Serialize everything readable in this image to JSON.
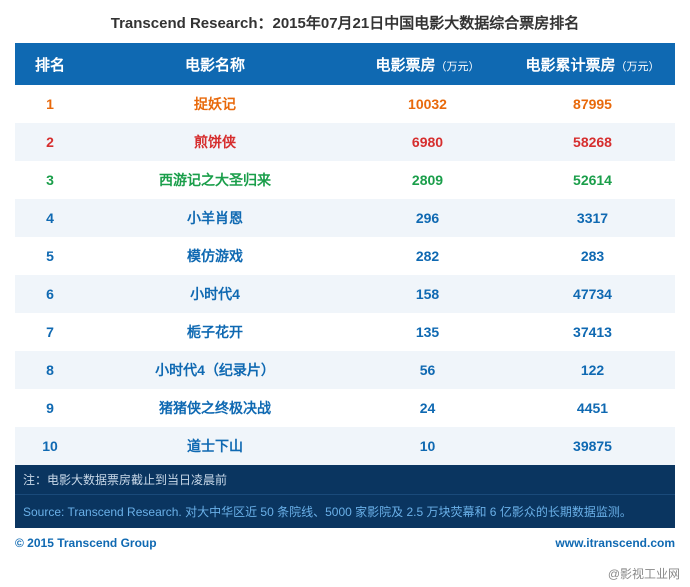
{
  "title": "Transcend Research：2015年07月21日中国电影大数据综合票房排名",
  "columns": {
    "rank": "排名",
    "name": "电影名称",
    "box": "电影票房",
    "cum": "电影累计票房",
    "unit": "（万元）"
  },
  "row_colors": {
    "rank1": "#e8690b",
    "rank2": "#d62e2e",
    "rank3": "#1a9e4a",
    "default": "#0f69b2"
  },
  "rows": [
    {
      "rank": "1",
      "name": "捉妖记",
      "box": "10032",
      "cum": "87995",
      "color": "rank1"
    },
    {
      "rank": "2",
      "name": "煎饼侠",
      "box": "6980",
      "cum": "58268",
      "color": "rank2"
    },
    {
      "rank": "3",
      "name": "西游记之大圣归来",
      "box": "2809",
      "cum": "52614",
      "color": "rank3"
    },
    {
      "rank": "4",
      "name": "小羊肖恩",
      "box": "296",
      "cum": "3317",
      "color": "default"
    },
    {
      "rank": "5",
      "name": "模仿游戏",
      "box": "282",
      "cum": "283",
      "color": "default"
    },
    {
      "rank": "6",
      "name": "小时代4",
      "box": "158",
      "cum": "47734",
      "color": "default"
    },
    {
      "rank": "7",
      "name": "栀子花开",
      "box": "135",
      "cum": "37413",
      "color": "default"
    },
    {
      "rank": "8",
      "name": "小时代4（纪录片）",
      "box": "56",
      "cum": "122",
      "color": "default"
    },
    {
      "rank": "9",
      "name": "猪猪侠之终极决战",
      "box": "24",
      "cum": "4451",
      "color": "default"
    },
    {
      "rank": "10",
      "name": "道士下山",
      "box": "10",
      "cum": "39875",
      "color": "default"
    }
  ],
  "note": "注：电影大数据票房截止到当日凌晨前",
  "source": "Source: Transcend Research. 对大中华区近 50 条院线、5000 家影院及 2.5 万块荧幕和 6 亿影众的长期数据监测。",
  "copyright": "© 2015 Transcend Group",
  "copyright_url": "www.itranscend.com",
  "watermark": "@影视工业网"
}
